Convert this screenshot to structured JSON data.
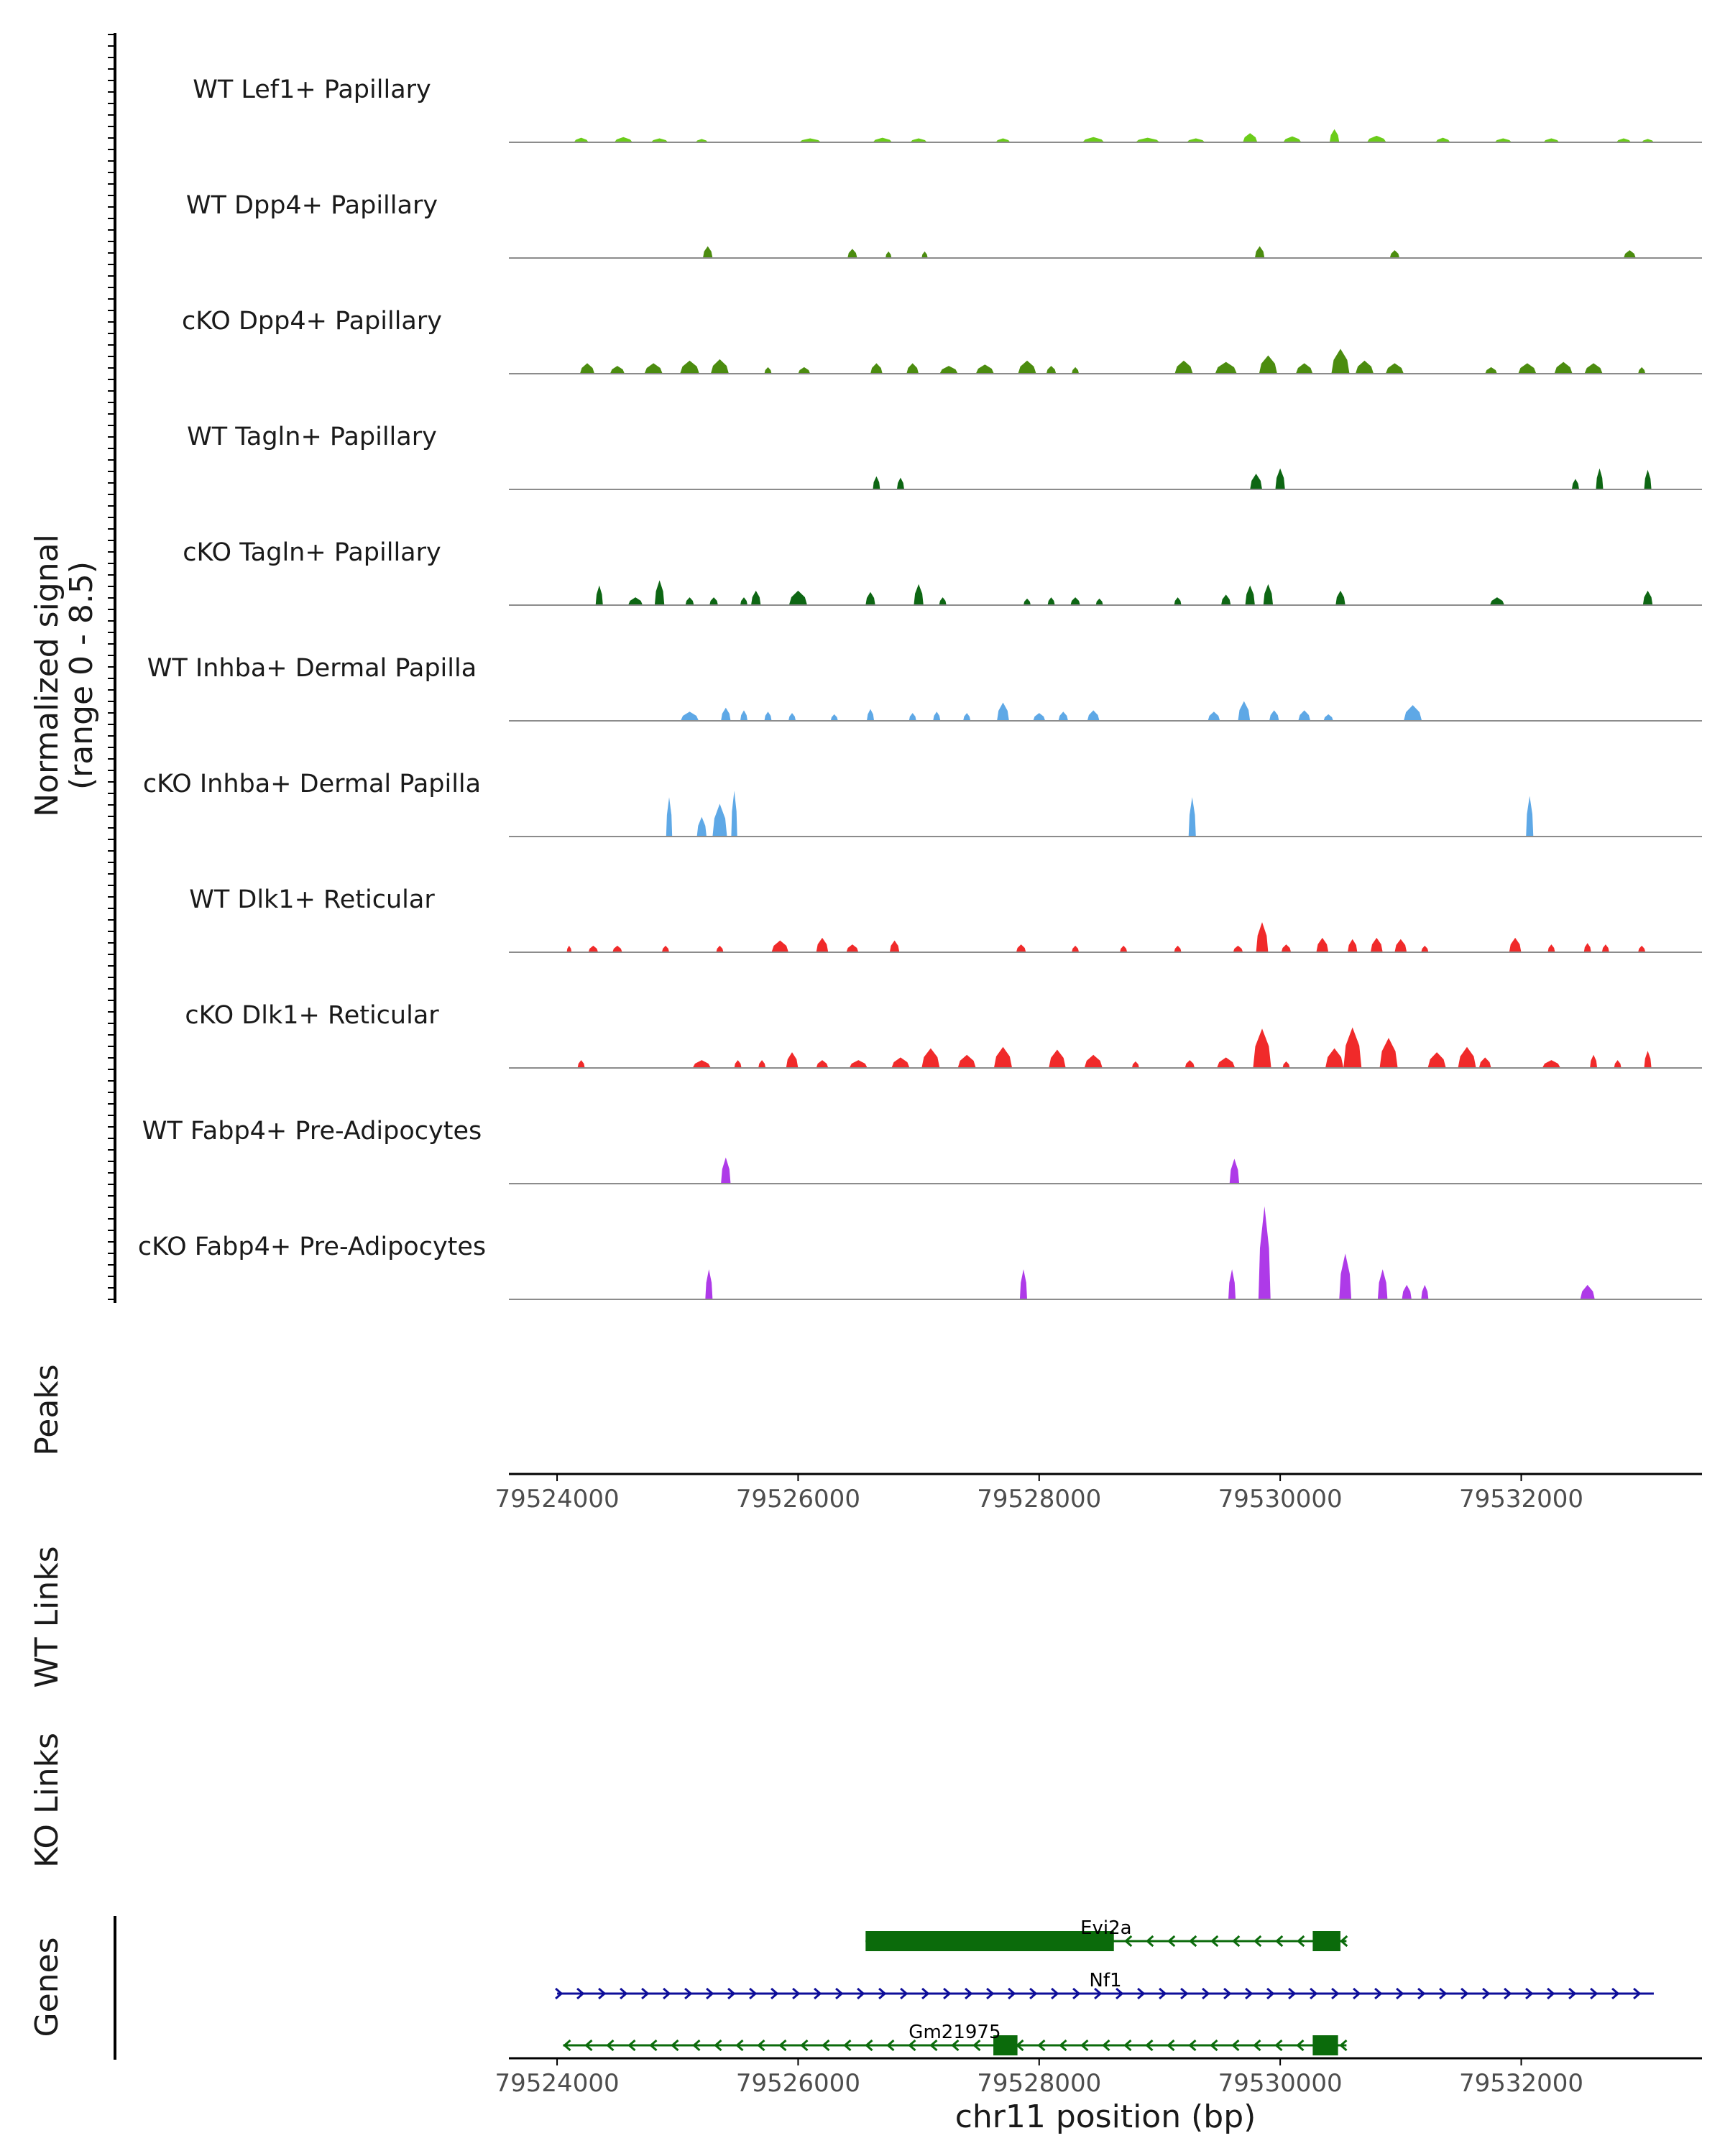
{
  "chart_data": {
    "type": "area",
    "signal_axis_label": [
      "Normalized signal",
      "(range 0 - 8.5)"
    ],
    "signal_range": [
      0,
      8.5
    ],
    "region_x_range": [
      79523600,
      79533500
    ],
    "axis_ticks": [
      79524000,
      79526000,
      79528000,
      79530000,
      79532000
    ],
    "tick_labels": [
      "79524000",
      "79526000",
      "79528000",
      "79530000",
      "79532000"
    ],
    "xlabel": "chr11 position (bp)",
    "colors": {
      "lef1": "#6bcc1a",
      "dpp4": "#4b8c0f",
      "tagln": "#0d6613",
      "inhba": "#5ea8e6",
      "dlk1": "#f02a2a",
      "fabp4": "#ae3ae8",
      "evi2a": "#0b6b0b",
      "nf1": "#0d0d99",
      "axis": "#000000",
      "baseline": "#8c8c8c"
    },
    "tracks": [
      {
        "label": "WT Lef1+ Papillary",
        "color": "lef1",
        "peaks": [
          [
            79524200,
            120,
            0.35
          ],
          [
            79524550,
            150,
            0.4
          ],
          [
            79524850,
            140,
            0.3
          ],
          [
            79525200,
            100,
            0.25
          ],
          [
            79526100,
            180,
            0.3
          ],
          [
            79526700,
            160,
            0.35
          ],
          [
            79527000,
            140,
            0.3
          ],
          [
            79527700,
            120,
            0.3
          ],
          [
            79528450,
            180,
            0.4
          ],
          [
            79528900,
            200,
            0.35
          ],
          [
            79529300,
            150,
            0.3
          ],
          [
            79529750,
            120,
            0.7
          ],
          [
            79530100,
            150,
            0.45
          ],
          [
            79530450,
            80,
            1.0
          ],
          [
            79530800,
            160,
            0.5
          ],
          [
            79531350,
            120,
            0.35
          ],
          [
            79531850,
            140,
            0.3
          ],
          [
            79532250,
            130,
            0.3
          ],
          [
            79532850,
            120,
            0.3
          ],
          [
            79533050,
            100,
            0.25
          ]
        ]
      },
      {
        "label": "WT Dpp4+ Papillary",
        "color": "dpp4",
        "peaks": [
          [
            79525250,
            80,
            0.9
          ],
          [
            79526450,
            80,
            0.7
          ],
          [
            79526750,
            50,
            0.5
          ],
          [
            79527050,
            50,
            0.5
          ],
          [
            79529830,
            80,
            0.9
          ],
          [
            79530950,
            80,
            0.6
          ],
          [
            79532900,
            100,
            0.6
          ]
        ]
      },
      {
        "label": "cKO Dpp4+ Papillary",
        "color": "dpp4",
        "peaks": [
          [
            79524250,
            120,
            0.8
          ],
          [
            79524500,
            120,
            0.6
          ],
          [
            79524800,
            150,
            0.8
          ],
          [
            79525100,
            160,
            1.0
          ],
          [
            79525350,
            150,
            1.1
          ],
          [
            79525750,
            60,
            0.5
          ],
          [
            79526050,
            100,
            0.5
          ],
          [
            79526650,
            100,
            0.8
          ],
          [
            79526950,
            100,
            0.8
          ],
          [
            79527250,
            150,
            0.6
          ],
          [
            79527550,
            150,
            0.7
          ],
          [
            79527900,
            150,
            1.0
          ],
          [
            79528100,
            80,
            0.6
          ],
          [
            79528300,
            60,
            0.5
          ],
          [
            79529200,
            150,
            1.0
          ],
          [
            79529550,
            180,
            0.9
          ],
          [
            79529900,
            150,
            1.4
          ],
          [
            79530200,
            140,
            0.8
          ],
          [
            79530500,
            150,
            1.9
          ],
          [
            79530700,
            150,
            1.0
          ],
          [
            79530950,
            150,
            0.8
          ],
          [
            79531750,
            100,
            0.5
          ],
          [
            79532050,
            150,
            0.8
          ],
          [
            79532350,
            150,
            0.9
          ],
          [
            79532600,
            150,
            0.8
          ],
          [
            79533000,
            60,
            0.5
          ]
        ]
      },
      {
        "label": "WT Tagln+ Papillary",
        "color": "tagln",
        "peaks": [
          [
            79526650,
            60,
            1.0
          ],
          [
            79526850,
            60,
            0.9
          ],
          [
            79529800,
            100,
            1.2
          ],
          [
            79530000,
            80,
            1.6
          ],
          [
            79532450,
            60,
            0.8
          ],
          [
            79532650,
            60,
            1.6
          ],
          [
            79533050,
            60,
            1.5
          ]
        ]
      },
      {
        "label": "cKO Tagln+ Papillary",
        "color": "tagln",
        "peaks": [
          [
            79524350,
            60,
            1.5
          ],
          [
            79524650,
            120,
            0.6
          ],
          [
            79524850,
            80,
            1.9
          ],
          [
            79525100,
            70,
            0.6
          ],
          [
            79525300,
            70,
            0.6
          ],
          [
            79525550,
            60,
            0.6
          ],
          [
            79525650,
            80,
            1.1
          ],
          [
            79526000,
            150,
            1.1
          ],
          [
            79526600,
            80,
            1.0
          ],
          [
            79527000,
            80,
            1.6
          ],
          [
            79527200,
            60,
            0.6
          ],
          [
            79527900,
            60,
            0.5
          ],
          [
            79528100,
            60,
            0.6
          ],
          [
            79528300,
            80,
            0.6
          ],
          [
            79528500,
            60,
            0.5
          ],
          [
            79529150,
            60,
            0.6
          ],
          [
            79529550,
            80,
            0.8
          ],
          [
            79529750,
            80,
            1.5
          ],
          [
            79529900,
            80,
            1.6
          ],
          [
            79530500,
            80,
            1.1
          ],
          [
            79531800,
            120,
            0.6
          ],
          [
            79533050,
            80,
            1.1
          ]
        ]
      },
      {
        "label": "WT Inhba+ Dermal Papilla",
        "color": "inhba",
        "peaks": [
          [
            79525100,
            150,
            0.7
          ],
          [
            79525400,
            80,
            1.0
          ],
          [
            79525550,
            60,
            0.8
          ],
          [
            79525750,
            60,
            0.7
          ],
          [
            79525950,
            60,
            0.6
          ],
          [
            79526300,
            60,
            0.5
          ],
          [
            79526600,
            60,
            0.9
          ],
          [
            79526950,
            60,
            0.6
          ],
          [
            79527150,
            60,
            0.7
          ],
          [
            79527400,
            60,
            0.6
          ],
          [
            79527700,
            100,
            1.4
          ],
          [
            79528000,
            100,
            0.6
          ],
          [
            79528200,
            80,
            0.7
          ],
          [
            79528450,
            100,
            0.8
          ],
          [
            79529450,
            100,
            0.7
          ],
          [
            79529700,
            100,
            1.5
          ],
          [
            79529950,
            80,
            0.8
          ],
          [
            79530200,
            100,
            0.8
          ],
          [
            79530400,
            80,
            0.5
          ],
          [
            79531100,
            150,
            1.2
          ]
        ]
      },
      {
        "label": "cKO Inhba+ Dermal Papilla",
        "color": "inhba",
        "peaks": [
          [
            79524930,
            50,
            3.0
          ],
          [
            79525200,
            80,
            1.5
          ],
          [
            79525350,
            120,
            2.5
          ],
          [
            79525470,
            50,
            3.5
          ],
          [
            79529270,
            60,
            3.0
          ],
          [
            79532070,
            60,
            3.1
          ]
        ]
      },
      {
        "label": "WT Dlk1+ Reticular",
        "color": "dlk1",
        "peaks": [
          [
            79524100,
            40,
            0.5
          ],
          [
            79524300,
            80,
            0.5
          ],
          [
            79524500,
            80,
            0.5
          ],
          [
            79524900,
            60,
            0.5
          ],
          [
            79525350,
            60,
            0.5
          ],
          [
            79525850,
            140,
            0.9
          ],
          [
            79526200,
            100,
            1.1
          ],
          [
            79526450,
            100,
            0.6
          ],
          [
            79526800,
            80,
            0.9
          ],
          [
            79527850,
            80,
            0.6
          ],
          [
            79528300,
            60,
            0.5
          ],
          [
            79528700,
            60,
            0.5
          ],
          [
            79529150,
            60,
            0.5
          ],
          [
            79529650,
            80,
            0.5
          ],
          [
            79529850,
            100,
            2.3
          ],
          [
            79530050,
            80,
            0.6
          ],
          [
            79530350,
            100,
            1.1
          ],
          [
            79530600,
            80,
            1.0
          ],
          [
            79530800,
            100,
            1.1
          ],
          [
            79531000,
            100,
            1.0
          ],
          [
            79531200,
            60,
            0.5
          ],
          [
            79531950,
            100,
            1.1
          ],
          [
            79532250,
            60,
            0.6
          ],
          [
            79532550,
            60,
            0.7
          ],
          [
            79532700,
            60,
            0.6
          ],
          [
            79533000,
            60,
            0.5
          ]
        ]
      },
      {
        "label": "cKO Dlk1+ Reticular",
        "color": "dlk1",
        "peaks": [
          [
            79524200,
            60,
            0.6
          ],
          [
            79525200,
            150,
            0.6
          ],
          [
            79525500,
            60,
            0.6
          ],
          [
            79525700,
            60,
            0.6
          ],
          [
            79525950,
            100,
            1.2
          ],
          [
            79526200,
            100,
            0.6
          ],
          [
            79526500,
            150,
            0.6
          ],
          [
            79526850,
            150,
            0.8
          ],
          [
            79527100,
            150,
            1.5
          ],
          [
            79527400,
            150,
            1.0
          ],
          [
            79527700,
            150,
            1.6
          ],
          [
            79528150,
            140,
            1.4
          ],
          [
            79528450,
            150,
            1.0
          ],
          [
            79528800,
            60,
            0.5
          ],
          [
            79529250,
            80,
            0.6
          ],
          [
            79529550,
            150,
            0.8
          ],
          [
            79529850,
            150,
            3.0
          ],
          [
            79530050,
            60,
            0.5
          ],
          [
            79530450,
            150,
            1.5
          ],
          [
            79530600,
            150,
            3.1
          ],
          [
            79530900,
            150,
            2.3
          ],
          [
            79531300,
            150,
            1.2
          ],
          [
            79531550,
            150,
            1.6
          ],
          [
            79531700,
            100,
            0.8
          ],
          [
            79532250,
            150,
            0.6
          ],
          [
            79532600,
            60,
            1.0
          ],
          [
            79532800,
            60,
            0.6
          ],
          [
            79533050,
            60,
            1.3
          ]
        ]
      },
      {
        "label": "WT Fabp4+ Pre-Adipocytes",
        "color": "fabp4",
        "peaks": [
          [
            79525400,
            80,
            2.0
          ],
          [
            79529620,
            80,
            1.9
          ]
        ]
      },
      {
        "label": "cKO Fabp4+ Pre-Adipocytes",
        "color": "fabp4",
        "peaks": [
          [
            79525260,
            60,
            2.3
          ],
          [
            79527870,
            60,
            2.3
          ],
          [
            79529600,
            60,
            2.3
          ],
          [
            79529870,
            100,
            7.1
          ],
          [
            79530540,
            100,
            3.5
          ],
          [
            79530850,
            80,
            2.3
          ],
          [
            79531050,
            80,
            1.1
          ],
          [
            79531200,
            60,
            1.1
          ],
          [
            79532550,
            120,
            1.1
          ]
        ]
      }
    ],
    "panels": {
      "peaks_label": "Peaks",
      "wt_links_label": "WT Links",
      "ko_links_label": "KO Links",
      "genes_label": "Genes"
    },
    "genes": [
      {
        "name": "Evi2a",
        "strand": "-",
        "start": 79526560,
        "end": 79530550,
        "color": "evi2a",
        "exons": [
          [
            79526560,
            79528620
          ],
          [
            79530270,
            79530500
          ]
        ]
      },
      {
        "name": "Nf1",
        "strand": "+",
        "start": 79524000,
        "end": 79533100,
        "color": "nf1",
        "exons": []
      },
      {
        "name": "Gm21975",
        "strand": "-",
        "start": 79524050,
        "end": 79530550,
        "color": "evi2a",
        "exons": [
          [
            79527620,
            79527820
          ],
          [
            79530270,
            79530480
          ]
        ]
      }
    ]
  }
}
